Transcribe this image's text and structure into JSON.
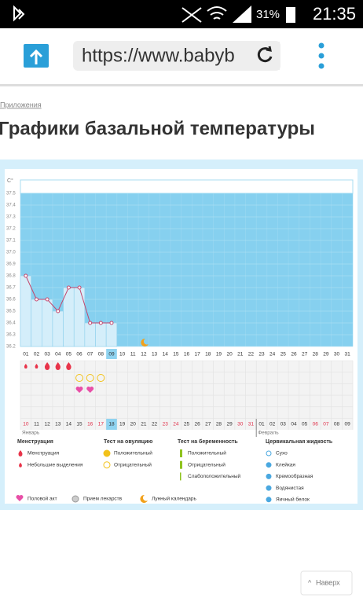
{
  "status_bar": {
    "battery": "31%",
    "time": "21:35"
  },
  "browser": {
    "url": "https://www.babyb"
  },
  "breadcrumb": "Приложения",
  "title": "Графики базальной температуры",
  "chart_data": {
    "type": "bar",
    "y_label": "C°",
    "ylim": [
      36.2,
      37.5
    ],
    "yticks": [
      36.2,
      36.3,
      36.4,
      36.5,
      36.6,
      36.7,
      36.8,
      36.9,
      {
        "value": 37,
        "label": "37.0"
      },
      37.1,
      37.2,
      37.3,
      37.4,
      37.5
    ],
    "categories": [
      "01",
      "02",
      "03",
      "04",
      "05",
      "06",
      "07",
      "08",
      "09",
      "10",
      "11",
      "12",
      "13",
      "14",
      "15",
      "16",
      "17",
      "18",
      "19",
      "20",
      "21",
      "22",
      "23",
      "24",
      "25",
      "26",
      "27",
      "28",
      "29",
      "30",
      "31"
    ],
    "values": [
      36.8,
      36.6,
      36.6,
      36.5,
      36.7,
      36.7,
      36.4,
      36.4,
      36.4,
      null,
      null,
      null,
      null,
      null,
      null,
      null,
      null,
      null,
      null,
      null,
      null,
      null,
      null,
      null,
      null,
      null,
      null,
      null,
      null,
      null,
      null
    ],
    "bar_color": "#d4eefa",
    "line_color": "#c4466d",
    "plot_color": "#86d0ef",
    "highlight_day_index": 8,
    "dates": [
      "10",
      "11",
      "12",
      "13",
      "14",
      "15",
      "16",
      "17",
      "18",
      "19",
      "20",
      "21",
      "22",
      "23",
      "24",
      "25",
      "26",
      "27",
      "28",
      "29",
      "30",
      "31",
      "01",
      "02",
      "03",
      "04",
      "05",
      "06",
      "07",
      "08",
      "09"
    ],
    "weekend_indices": [
      0,
      6,
      7,
      13,
      14,
      20,
      21,
      27,
      28
    ],
    "highlight_date_index": 8,
    "months": [
      "Январь",
      "Февраль"
    ],
    "month_start_indices": [
      0,
      22
    ],
    "bleeding_light": [
      0,
      1
    ],
    "bleeding": [
      2,
      3,
      4
    ],
    "ovulation_negative": [
      5,
      6,
      7
    ],
    "intercourse": [
      5,
      6
    ],
    "moon": 11
  },
  "legend": {
    "groups": [
      {
        "title": "Менструация",
        "items": [
          "Менструация",
          "Небольшие выделения"
        ]
      },
      {
        "title": "Тест на овуляцию",
        "items": [
          "Положительный",
          "Отрицательный"
        ]
      },
      {
        "title": "Тест на беременность",
        "items": [
          "Положительный",
          "Отрицательный",
          "Слабоположительный"
        ]
      },
      {
        "title": "Цервикальная жидкость",
        "items": [
          "Сухо",
          "Клейкая",
          "Кремообразная",
          "Водянистая",
          "Яичный белок"
        ]
      }
    ],
    "extra": [
      "Половой акт",
      "Прием лекарств",
      "Лунный календарь"
    ]
  },
  "footer_button": "Наверх"
}
